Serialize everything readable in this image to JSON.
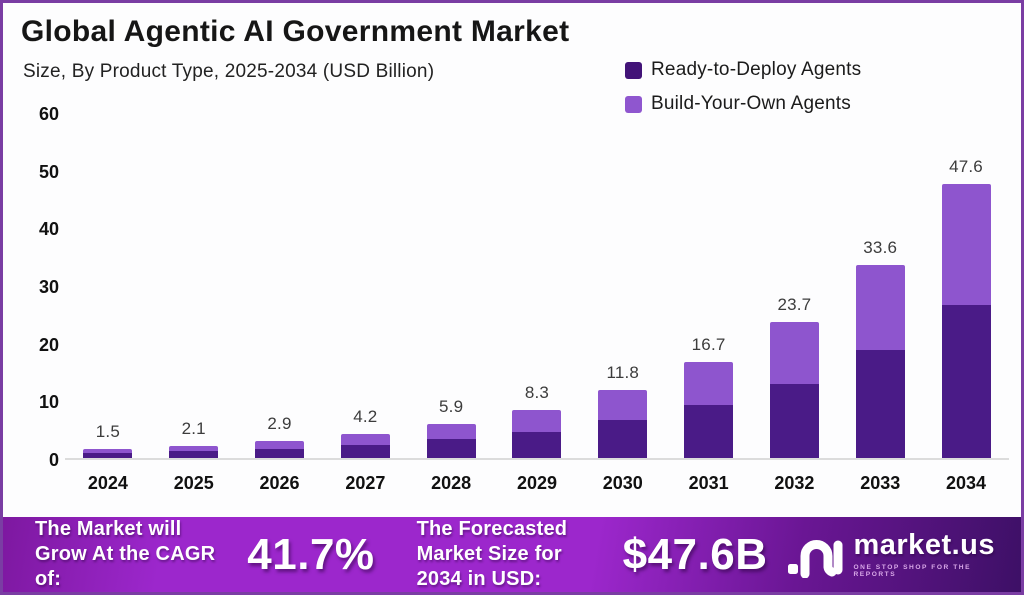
{
  "header": {
    "title": "Global Agentic AI Government Market",
    "subtitle": "Size, By Product Type, 2025-2034 (USD Billion)"
  },
  "legend": [
    {
      "label": "Ready-to-Deploy Agents",
      "color": "#421378"
    },
    {
      "label": "Build-Your-Own Agents",
      "color": "#8f56cf"
    }
  ],
  "chart_data": {
    "type": "bar",
    "stacked": true,
    "title": "Global Agentic AI Government Market",
    "subtitle": "Size, By Product Type, 2025-2034 (USD Billion)",
    "unit": "USD Billion",
    "categories": [
      "2024",
      "2025",
      "2026",
      "2027",
      "2028",
      "2029",
      "2030",
      "2031",
      "2032",
      "2033",
      "2034"
    ],
    "series": [
      {
        "name": "Ready-to-Deploy Agents",
        "color": "#4a1b87",
        "values": [
          0.8,
          1.2,
          1.6,
          2.3,
          3.3,
          4.5,
          6.6,
          9.3,
          12.8,
          18.8,
          26.7
        ]
      },
      {
        "name": "Build-Your-Own Agents",
        "color": "#8e55ce",
        "values": [
          0.7,
          0.9,
          1.3,
          1.9,
          2.6,
          3.8,
          5.2,
          7.4,
          10.9,
          14.8,
          20.9
        ]
      }
    ],
    "totals": [
      1.5,
      2.1,
      2.9,
      4.2,
      5.9,
      8.3,
      11.8,
      16.7,
      23.7,
      33.6,
      47.6
    ],
    "total_labels": [
      "1.5",
      "2.1",
      "2.9",
      "4.2",
      "5.9",
      "8.3",
      "11.8",
      "16.7",
      "23.7",
      "33.6",
      "47.6"
    ],
    "ylim": [
      0,
      60
    ],
    "yticks": [
      "60",
      "50",
      "40",
      "30",
      "20",
      "10",
      "0"
    ],
    "grid": false,
    "legend_position": "top-right",
    "xlabel": "",
    "ylabel": ""
  },
  "footer": {
    "growth_text": "The Market will Grow At the CAGR of:",
    "cagr_value": "41.7%",
    "forecast_text": "The Forecasted Market Size for 2034 in USD:",
    "forecast_value": "$47.6B",
    "brand": "market.us",
    "brand_tagline": "ONE STOP SHOP FOR THE REPORTS"
  }
}
